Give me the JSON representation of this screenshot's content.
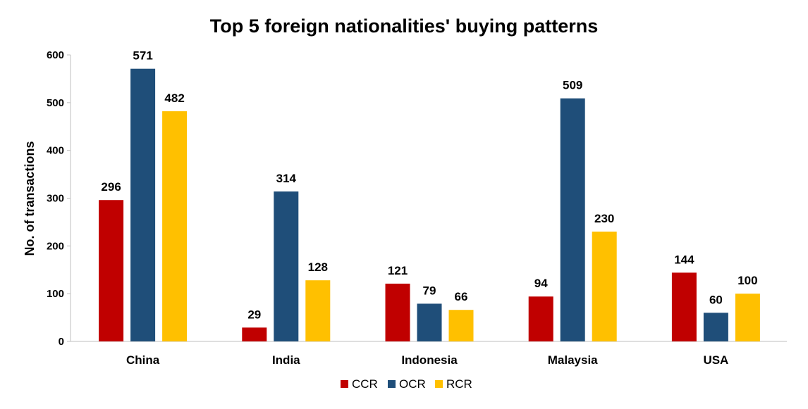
{
  "chart_data": {
    "type": "bar",
    "title": "Top 5 foreign nationalities' buying patterns",
    "xlabel": "",
    "ylabel": "No. of transactions",
    "categories": [
      "China",
      "India",
      "Indonesia",
      "Malaysia",
      "USA"
    ],
    "series": [
      {
        "name": "CCR",
        "color": "#C00000",
        "values": [
          296,
          29,
          121,
          94,
          144
        ]
      },
      {
        "name": "OCR",
        "color": "#1F4E79",
        "values": [
          571,
          314,
          79,
          509,
          60
        ]
      },
      {
        "name": "RCR",
        "color": "#FFC000",
        "values": [
          482,
          128,
          66,
          230,
          100
        ]
      }
    ],
    "ylim": [
      0,
      600
    ],
    "yticks": [
      0,
      100,
      200,
      300,
      400,
      500,
      600
    ],
    "grid": false,
    "legend_position": "bottom"
  }
}
